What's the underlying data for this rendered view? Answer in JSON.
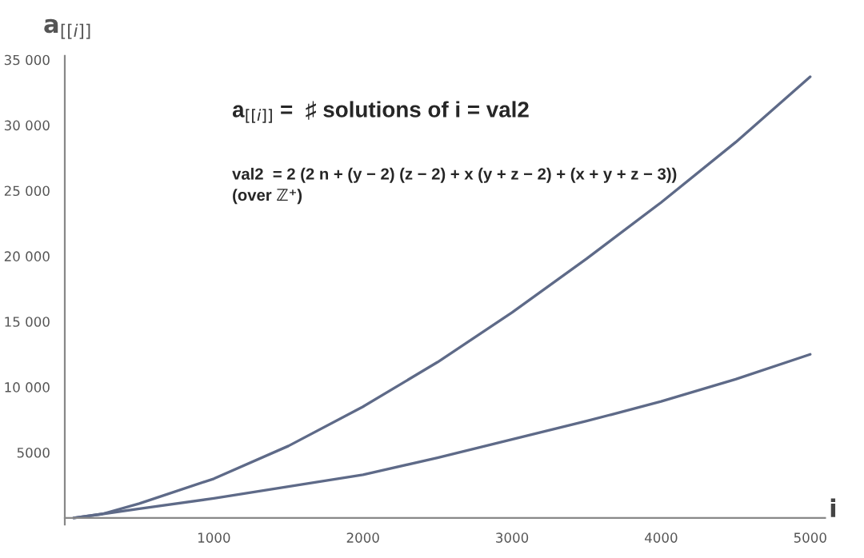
{
  "chart_data": {
    "type": "line",
    "xlabel": "i",
    "ylabel": "a$_{[[i]]}$",
    "annotations": [
      "a$_{[[i]]}$ =  ♯ solutions of i = val2",
      "val2  = 2 (2 n + (y − 2) (z − 2) + x (y + z − 2) + (x + y + z − 3))",
      "(over ℤ⁺)"
    ],
    "series": [
      {
        "color": "#5e6a88",
        "x": [
          60,
          250,
          500,
          1000,
          1500,
          2000,
          2500,
          3000,
          3500,
          4000,
          4500,
          5000
        ],
        "values": [
          0,
          300,
          1100,
          3000,
          5500,
          8500,
          11900,
          15700,
          19800,
          24100,
          28700,
          33700
        ]
      },
      {
        "color": "#5e6a88",
        "x": [
          60,
          250,
          500,
          1000,
          1500,
          2000,
          2500,
          3000,
          3500,
          4000,
          4500,
          5000
        ],
        "values": [
          0,
          300,
          700,
          1500,
          2400,
          3300,
          4600,
          6000,
          7400,
          8900,
          10600,
          12500
        ]
      }
    ],
    "xlim": [
      0,
      5100
    ],
    "ylim": [
      -500,
      35300
    ],
    "xticks": [
      1000,
      2000,
      3000,
      4000,
      5000
    ],
    "yticks": [
      5000,
      {
        "value": 10000,
        "label": "10 000"
      },
      {
        "value": 15000,
        "label": "15 000"
      },
      {
        "value": 20000,
        "label": "20 000"
      },
      {
        "value": 25000,
        "label": "25 000"
      },
      {
        "value": 30000,
        "label": "30 000"
      },
      {
        "value": 35000,
        "label": "35 000"
      }
    ],
    "grid": false,
    "legend": false
  }
}
